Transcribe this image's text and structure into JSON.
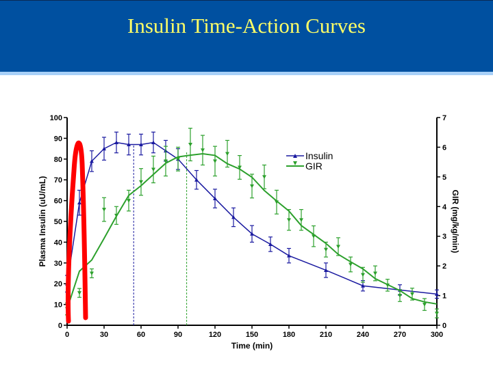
{
  "slide": {
    "title": "Insulin Time-Action Curves"
  },
  "chart_data": {
    "type": "line",
    "xlabel": "Time (min)",
    "ylabel": "Plasma Insulin (uU/mL)",
    "y2label": "GIR (mg/kg/min)",
    "xlim": [
      0,
      300
    ],
    "ylim": [
      0,
      100
    ],
    "y2lim": [
      0,
      7
    ],
    "xticks": [
      "0",
      "30",
      "60",
      "90",
      "120",
      "150",
      "180",
      "210",
      "240",
      "270",
      "300"
    ],
    "yticks": [
      "0",
      "10",
      "20",
      "30",
      "40",
      "50",
      "60",
      "70",
      "80",
      "90",
      "100"
    ],
    "y2ticks": [
      "0",
      "1",
      "2",
      "3",
      "4",
      "5",
      "6",
      "7"
    ],
    "grid": false,
    "legend_position": "top-right",
    "series": [
      {
        "name": "Insulin",
        "axis": "left",
        "color": "#1a1aa0",
        "marker": "triangle-up",
        "x": [
          0,
          10,
          20,
          30,
          40,
          50,
          60,
          70,
          80,
          90,
          105,
          120,
          135,
          150,
          165,
          180,
          210,
          240,
          270,
          300
        ],
        "y": [
          20,
          59,
          79,
          85,
          88,
          87,
          87,
          88,
          84,
          80,
          70,
          61,
          52,
          44,
          39,
          33.5,
          26.5,
          19,
          17,
          15
        ],
        "err": [
          4,
          6,
          5,
          5.5,
          5,
          5,
          5,
          5,
          5,
          5,
          4.5,
          4.5,
          4.5,
          4,
          3.5,
          3.5,
          3.5,
          2.5,
          2.5,
          2
        ]
      },
      {
        "name": "GIR",
        "axis": "right",
        "color": "#2ca02c",
        "marker": "triangle-down",
        "x": [
          0,
          10,
          20,
          30,
          40,
          50,
          60,
          70,
          80,
          90,
          100,
          110,
          120,
          130,
          140,
          150,
          160,
          170,
          180,
          190,
          200,
          210,
          220,
          230,
          240,
          250,
          260,
          270,
          280,
          290,
          300
        ],
        "y": [
          0.55,
          1.09,
          1.75,
          3.9,
          3.7,
          4.2,
          4.83,
          5.25,
          5.53,
          5.6,
          6.09,
          5.9,
          5.53,
          5.78,
          5.32,
          4.69,
          5.0,
          4.15,
          3.55,
          3.55,
          3.0,
          2.55,
          2.65,
          2.05,
          1.7,
          1.75,
          1.35,
          1.0,
          1.05,
          0.7,
          0.4
        ],
        "err": [
          0.2,
          0.15,
          0.15,
          0.4,
          0.3,
          0.35,
          0.45,
          0.45,
          0.5,
          0.4,
          0.55,
          0.5,
          0.5,
          0.45,
          0.4,
          0.4,
          0.4,
          0.4,
          0.35,
          0.35,
          0.35,
          0.25,
          0.3,
          0.25,
          0.25,
          0.25,
          0.2,
          0.2,
          0.2,
          0.2,
          0.15
        ]
      }
    ],
    "reference_lines": [
      {
        "x": 54,
        "color": "#1a1aa0",
        "style": "dashed"
      },
      {
        "x": 97,
        "color": "#2ca02c",
        "style": "dashed"
      }
    ],
    "annotation_color": "#ff0000"
  }
}
